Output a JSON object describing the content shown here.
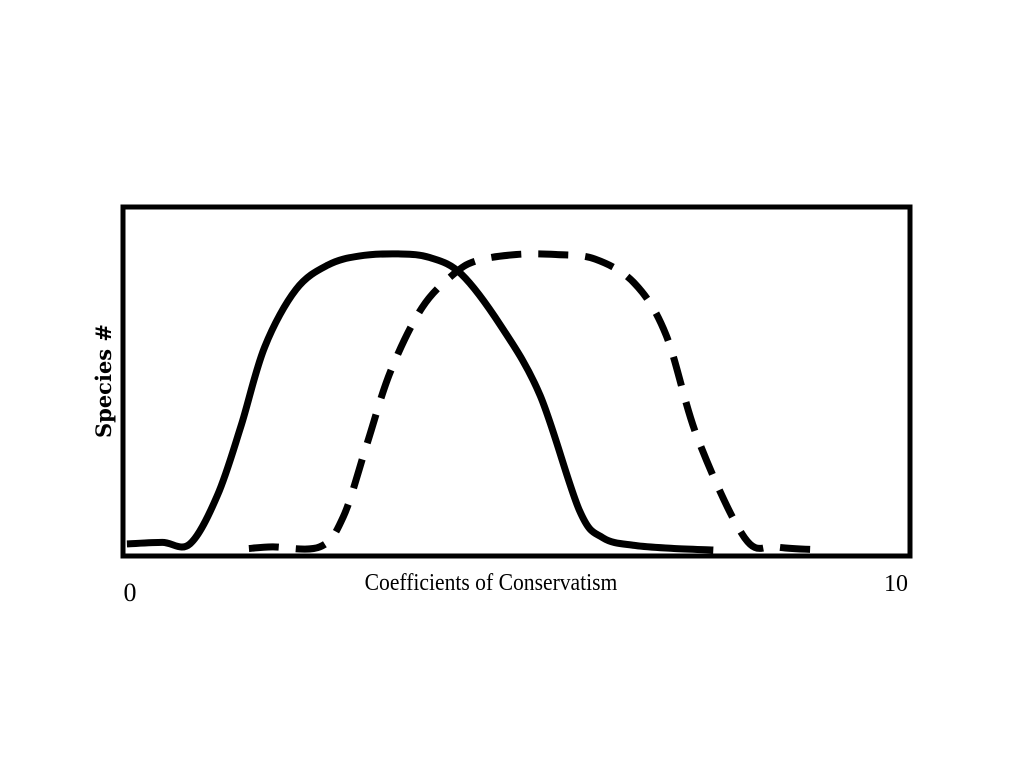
{
  "chart_data": {
    "type": "line",
    "title": "",
    "xlabel": "Coefficients of Conservatism",
    "ylabel": "Species #",
    "xlim": [
      0,
      10
    ],
    "ylim": [
      0,
      1
    ],
    "x_tick_labels": [
      "0",
      "10"
    ],
    "grid": false,
    "legend": "none",
    "series": [
      {
        "style": "solid",
        "color": "#000000",
        "x": [
          0.05,
          0.5,
          0.85,
          1.2,
          1.5,
          1.8,
          2.2,
          2.6,
          3.0,
          3.5,
          3.9,
          4.3,
          4.8,
          5.3,
          5.8,
          6.1,
          6.5,
          7.0,
          7.5
        ],
        "y": [
          0.03,
          0.035,
          0.03,
          0.19,
          0.42,
          0.68,
          0.87,
          0.95,
          0.98,
          0.987,
          0.975,
          0.92,
          0.75,
          0.52,
          0.14,
          0.05,
          0.025,
          0.015,
          0.01
        ]
      },
      {
        "style": "dashed",
        "color": "#000000",
        "x": [
          1.6,
          1.9,
          2.5,
          2.8,
          3.1,
          3.4,
          3.8,
          4.2,
          4.5,
          5.0,
          5.5,
          6.0,
          6.5,
          6.9,
          7.3,
          7.9,
          8.3,
          8.9
        ],
        "y": [
          0.015,
          0.02,
          0.02,
          0.12,
          0.36,
          0.6,
          0.81,
          0.92,
          0.965,
          0.985,
          0.985,
          0.97,
          0.89,
          0.72,
          0.38,
          0.05,
          0.02,
          0.01
        ]
      }
    ]
  }
}
